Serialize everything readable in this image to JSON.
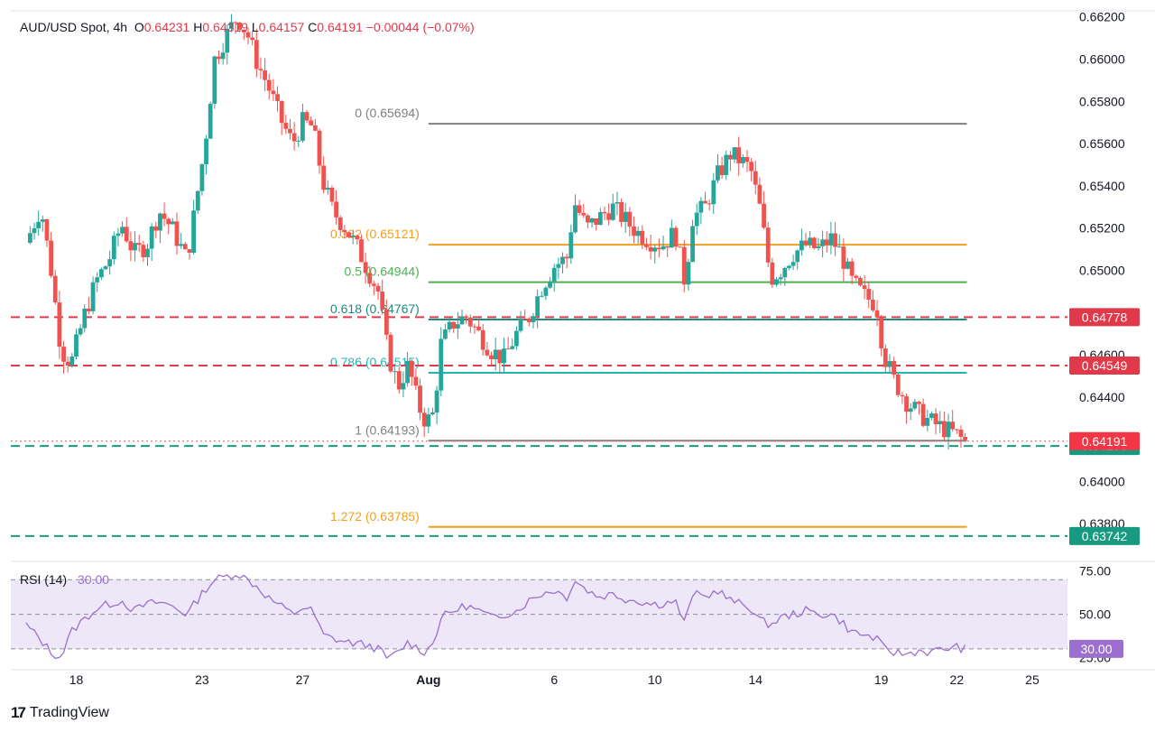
{
  "header": {
    "symbol": "AUD/USD Spot, 4h",
    "o_label": "O",
    "o_value": "0.64231",
    "h_label": "H",
    "h_value": "0.64319",
    "l_label": "L",
    "l_value": "0.64157",
    "c_label": "C",
    "c_value": "0.64191",
    "change": "−0.00044 (−0.07%)"
  },
  "branding": {
    "logo_mark": "17",
    "name": "TradingView"
  },
  "colors": {
    "bull": "#26a69a",
    "bear": "#ef5350",
    "rsi": "#9c6fcf",
    "rsi_band": "#ede7f8",
    "fib_gray": "#808080",
    "fib_orange": "#f0a020",
    "fib_green": "#4caf50",
    "fib_teal": "#1e8a7e",
    "fib_cyan": "#26b3b8",
    "red_line": "#e0394a",
    "green_line": "#189a80"
  },
  "chart_data": {
    "type": "candlestick",
    "title": "AUD/USD Spot, 4h",
    "price_axis": {
      "min": 0.6366,
      "max": 0.6622,
      "ticks": [
        0.638,
        0.64,
        0.644,
        0.646,
        0.65,
        0.652,
        0.654,
        0.656,
        0.658,
        0.66,
        0.662
      ],
      "tick_labels": [
        "0.63800",
        "0.64000",
        "0.64400",
        "0.64600",
        "0.65000",
        "0.65200",
        "0.65400",
        "0.65600",
        "0.65800",
        "0.66000",
        "0.66200"
      ]
    },
    "time_axis": {
      "labels": [
        "18",
        "23",
        "27",
        "Aug",
        "6",
        "10",
        "14",
        "19",
        "22",
        "25"
      ],
      "days": [
        18,
        23,
        27,
        32,
        37,
        41,
        45,
        50,
        53,
        56
      ]
    },
    "fib_levels": [
      {
        "label": "0 (0.65694)",
        "value": 0.65694,
        "color": "#808080"
      },
      {
        "label": "0.382 (0.65121)",
        "value": 0.65121,
        "color": "#f0a020"
      },
      {
        "label": "0.5 (0.64944)",
        "value": 0.64944,
        "color": "#4caf50"
      },
      {
        "label": "0.618 (0.64767)",
        "value": 0.64767,
        "color": "#1e8a7e"
      },
      {
        "label": "0.786 (0.64515)",
        "value": 0.64515,
        "color": "#26b3b8"
      },
      {
        "label": "1 (0.64193)",
        "value": 0.64193,
        "color": "#808080"
      },
      {
        "label": "1.272 (0.63785)",
        "value": 0.63785,
        "color": "#f0a020"
      }
    ],
    "horizontal_lines": [
      {
        "value": 0.64778,
        "style": "dashed",
        "color": "#e0394a",
        "label": "0.64778"
      },
      {
        "value": 0.64549,
        "style": "dashed",
        "color": "#e0394a",
        "label": "0.64549"
      },
      {
        "value": 0.64168,
        "style": "dashed",
        "color": "#189a80",
        "label": "0.64168"
      },
      {
        "value": 0.63742,
        "style": "dashed",
        "color": "#189a80",
        "label": "0.63742"
      }
    ],
    "last_price": {
      "value": 0.64191,
      "label": "0.64191"
    },
    "anchors": [
      [
        16.0,
        0.6513
      ],
      [
        16.6,
        0.653
      ],
      [
        17.0,
        0.65
      ],
      [
        17.4,
        0.6462
      ],
      [
        17.8,
        0.6456
      ],
      [
        18.3,
        0.6478
      ],
      [
        18.8,
        0.6495
      ],
      [
        19.3,
        0.6505
      ],
      [
        19.8,
        0.6522
      ],
      [
        20.3,
        0.6508
      ],
      [
        20.8,
        0.6512
      ],
      [
        21.3,
        0.6528
      ],
      [
        21.8,
        0.652
      ],
      [
        22.4,
        0.6505
      ],
      [
        22.8,
        0.6535
      ],
      [
        23.1,
        0.6558
      ],
      [
        23.5,
        0.66
      ],
      [
        24.0,
        0.6612
      ],
      [
        24.4,
        0.662
      ],
      [
        24.8,
        0.6612
      ],
      [
        25.2,
        0.6598
      ],
      [
        25.6,
        0.6588
      ],
      [
        26.1,
        0.6572
      ],
      [
        26.6,
        0.656
      ],
      [
        27.0,
        0.657
      ],
      [
        27.4,
        0.6568
      ],
      [
        27.8,
        0.6542
      ],
      [
        28.2,
        0.6528
      ],
      [
        28.7,
        0.652
      ],
      [
        29.2,
        0.651
      ],
      [
        29.6,
        0.65
      ],
      [
        30.0,
        0.649
      ],
      [
        30.4,
        0.646
      ],
      [
        30.8,
        0.6445
      ],
      [
        31.2,
        0.6455
      ],
      [
        31.6,
        0.6436
      ],
      [
        31.9,
        0.6428
      ],
      [
        32.2,
        0.6432
      ],
      [
        32.5,
        0.6465
      ],
      [
        33.0,
        0.6475
      ],
      [
        33.5,
        0.6478
      ],
      [
        34.0,
        0.647
      ],
      [
        34.5,
        0.6462
      ],
      [
        35.0,
        0.6458
      ],
      [
        35.5,
        0.647
      ],
      [
        36.0,
        0.6478
      ],
      [
        36.5,
        0.6492
      ],
      [
        37.0,
        0.6502
      ],
      [
        37.5,
        0.6506
      ],
      [
        37.8,
        0.6532
      ],
      [
        38.3,
        0.652
      ],
      [
        38.8,
        0.6525
      ],
      [
        39.3,
        0.653
      ],
      [
        39.8,
        0.6524
      ],
      [
        40.3,
        0.6518
      ],
      [
        40.8,
        0.6514
      ],
      [
        41.3,
        0.6512
      ],
      [
        41.8,
        0.6518
      ],
      [
        42.2,
        0.6494
      ],
      [
        42.5,
        0.6525
      ],
      [
        43.0,
        0.653
      ],
      [
        43.5,
        0.6545
      ],
      [
        44.0,
        0.6555
      ],
      [
        44.4,
        0.6552
      ],
      [
        44.8,
        0.6548
      ],
      [
        45.2,
        0.6528
      ],
      [
        45.6,
        0.6496
      ],
      [
        46.0,
        0.65
      ],
      [
        46.5,
        0.6508
      ],
      [
        47.0,
        0.6512
      ],
      [
        47.5,
        0.651
      ],
      [
        48.0,
        0.6515
      ],
      [
        48.4,
        0.6508
      ],
      [
        48.8,
        0.6495
      ],
      [
        49.3,
        0.6488
      ],
      [
        49.8,
        0.6484
      ],
      [
        50.1,
        0.646
      ],
      [
        50.5,
        0.6448
      ],
      [
        51.0,
        0.6438
      ],
      [
        51.5,
        0.6432
      ],
      [
        52.0,
        0.6428
      ],
      [
        52.5,
        0.6425
      ],
      [
        53.0,
        0.6422
      ],
      [
        53.3,
        0.6419
      ]
    ],
    "rsi": {
      "label": "RSI (14)",
      "value_label": "30.00",
      "levels": [
        70,
        50,
        30
      ],
      "axis_ticks": [
        75,
        50,
        25
      ],
      "axis_labels": [
        "75.00",
        "50.00",
        "25.00"
      ],
      "current": 30.0,
      "current_label": "30.00",
      "anchors": [
        [
          16.0,
          44
        ],
        [
          16.6,
          35
        ],
        [
          17.0,
          28
        ],
        [
          17.4,
          25
        ],
        [
          17.8,
          40
        ],
        [
          18.3,
          47
        ],
        [
          18.8,
          53
        ],
        [
          19.3,
          56
        ],
        [
          19.8,
          58
        ],
        [
          20.3,
          52
        ],
        [
          20.8,
          56
        ],
        [
          21.3,
          57
        ],
        [
          21.8,
          55
        ],
        [
          22.4,
          50
        ],
        [
          22.8,
          58
        ],
        [
          23.1,
          64
        ],
        [
          23.5,
          70
        ],
        [
          24.0,
          72
        ],
        [
          24.4,
          74
        ],
        [
          24.8,
          70
        ],
        [
          25.2,
          66
        ],
        [
          25.6,
          60
        ],
        [
          26.1,
          55
        ],
        [
          26.6,
          50
        ],
        [
          27.0,
          54
        ],
        [
          27.4,
          52
        ],
        [
          27.8,
          38
        ],
        [
          28.2,
          36
        ],
        [
          28.7,
          34
        ],
        [
          29.2,
          33
        ],
        [
          29.6,
          32
        ],
        [
          30.0,
          30
        ],
        [
          30.4,
          24
        ],
        [
          30.8,
          28
        ],
        [
          31.2,
          34
        ],
        [
          31.6,
          30
        ],
        [
          31.9,
          28
        ],
        [
          32.2,
          34
        ],
        [
          32.5,
          48
        ],
        [
          33.0,
          52
        ],
        [
          33.5,
          55
        ],
        [
          34.0,
          52
        ],
        [
          34.5,
          48
        ],
        [
          35.0,
          50
        ],
        [
          35.5,
          52
        ],
        [
          36.0,
          58
        ],
        [
          36.5,
          62
        ],
        [
          37.0,
          64
        ],
        [
          37.5,
          60
        ],
        [
          37.8,
          70
        ],
        [
          38.3,
          64
        ],
        [
          38.8,
          60
        ],
        [
          39.3,
          62
        ],
        [
          39.8,
          59
        ],
        [
          40.3,
          58
        ],
        [
          40.8,
          56
        ],
        [
          41.3,
          56
        ],
        [
          41.8,
          58
        ],
        [
          42.2,
          44
        ],
        [
          42.5,
          62
        ],
        [
          43.0,
          60
        ],
        [
          43.5,
          64
        ],
        [
          44.0,
          58
        ],
        [
          44.4,
          56
        ],
        [
          44.8,
          54
        ],
        [
          45.2,
          46
        ],
        [
          45.6,
          44
        ],
        [
          46.0,
          48
        ],
        [
          46.5,
          50
        ],
        [
          47.0,
          52
        ],
        [
          47.5,
          50
        ],
        [
          48.0,
          50
        ],
        [
          48.4,
          46
        ],
        [
          48.8,
          40
        ],
        [
          49.3,
          38
        ],
        [
          49.8,
          36
        ],
        [
          50.1,
          30
        ],
        [
          50.5,
          28
        ],
        [
          51.0,
          27
        ],
        [
          51.5,
          29
        ],
        [
          52.0,
          28
        ],
        [
          52.5,
          30
        ],
        [
          53.0,
          31
        ],
        [
          53.3,
          30
        ]
      ]
    }
  }
}
